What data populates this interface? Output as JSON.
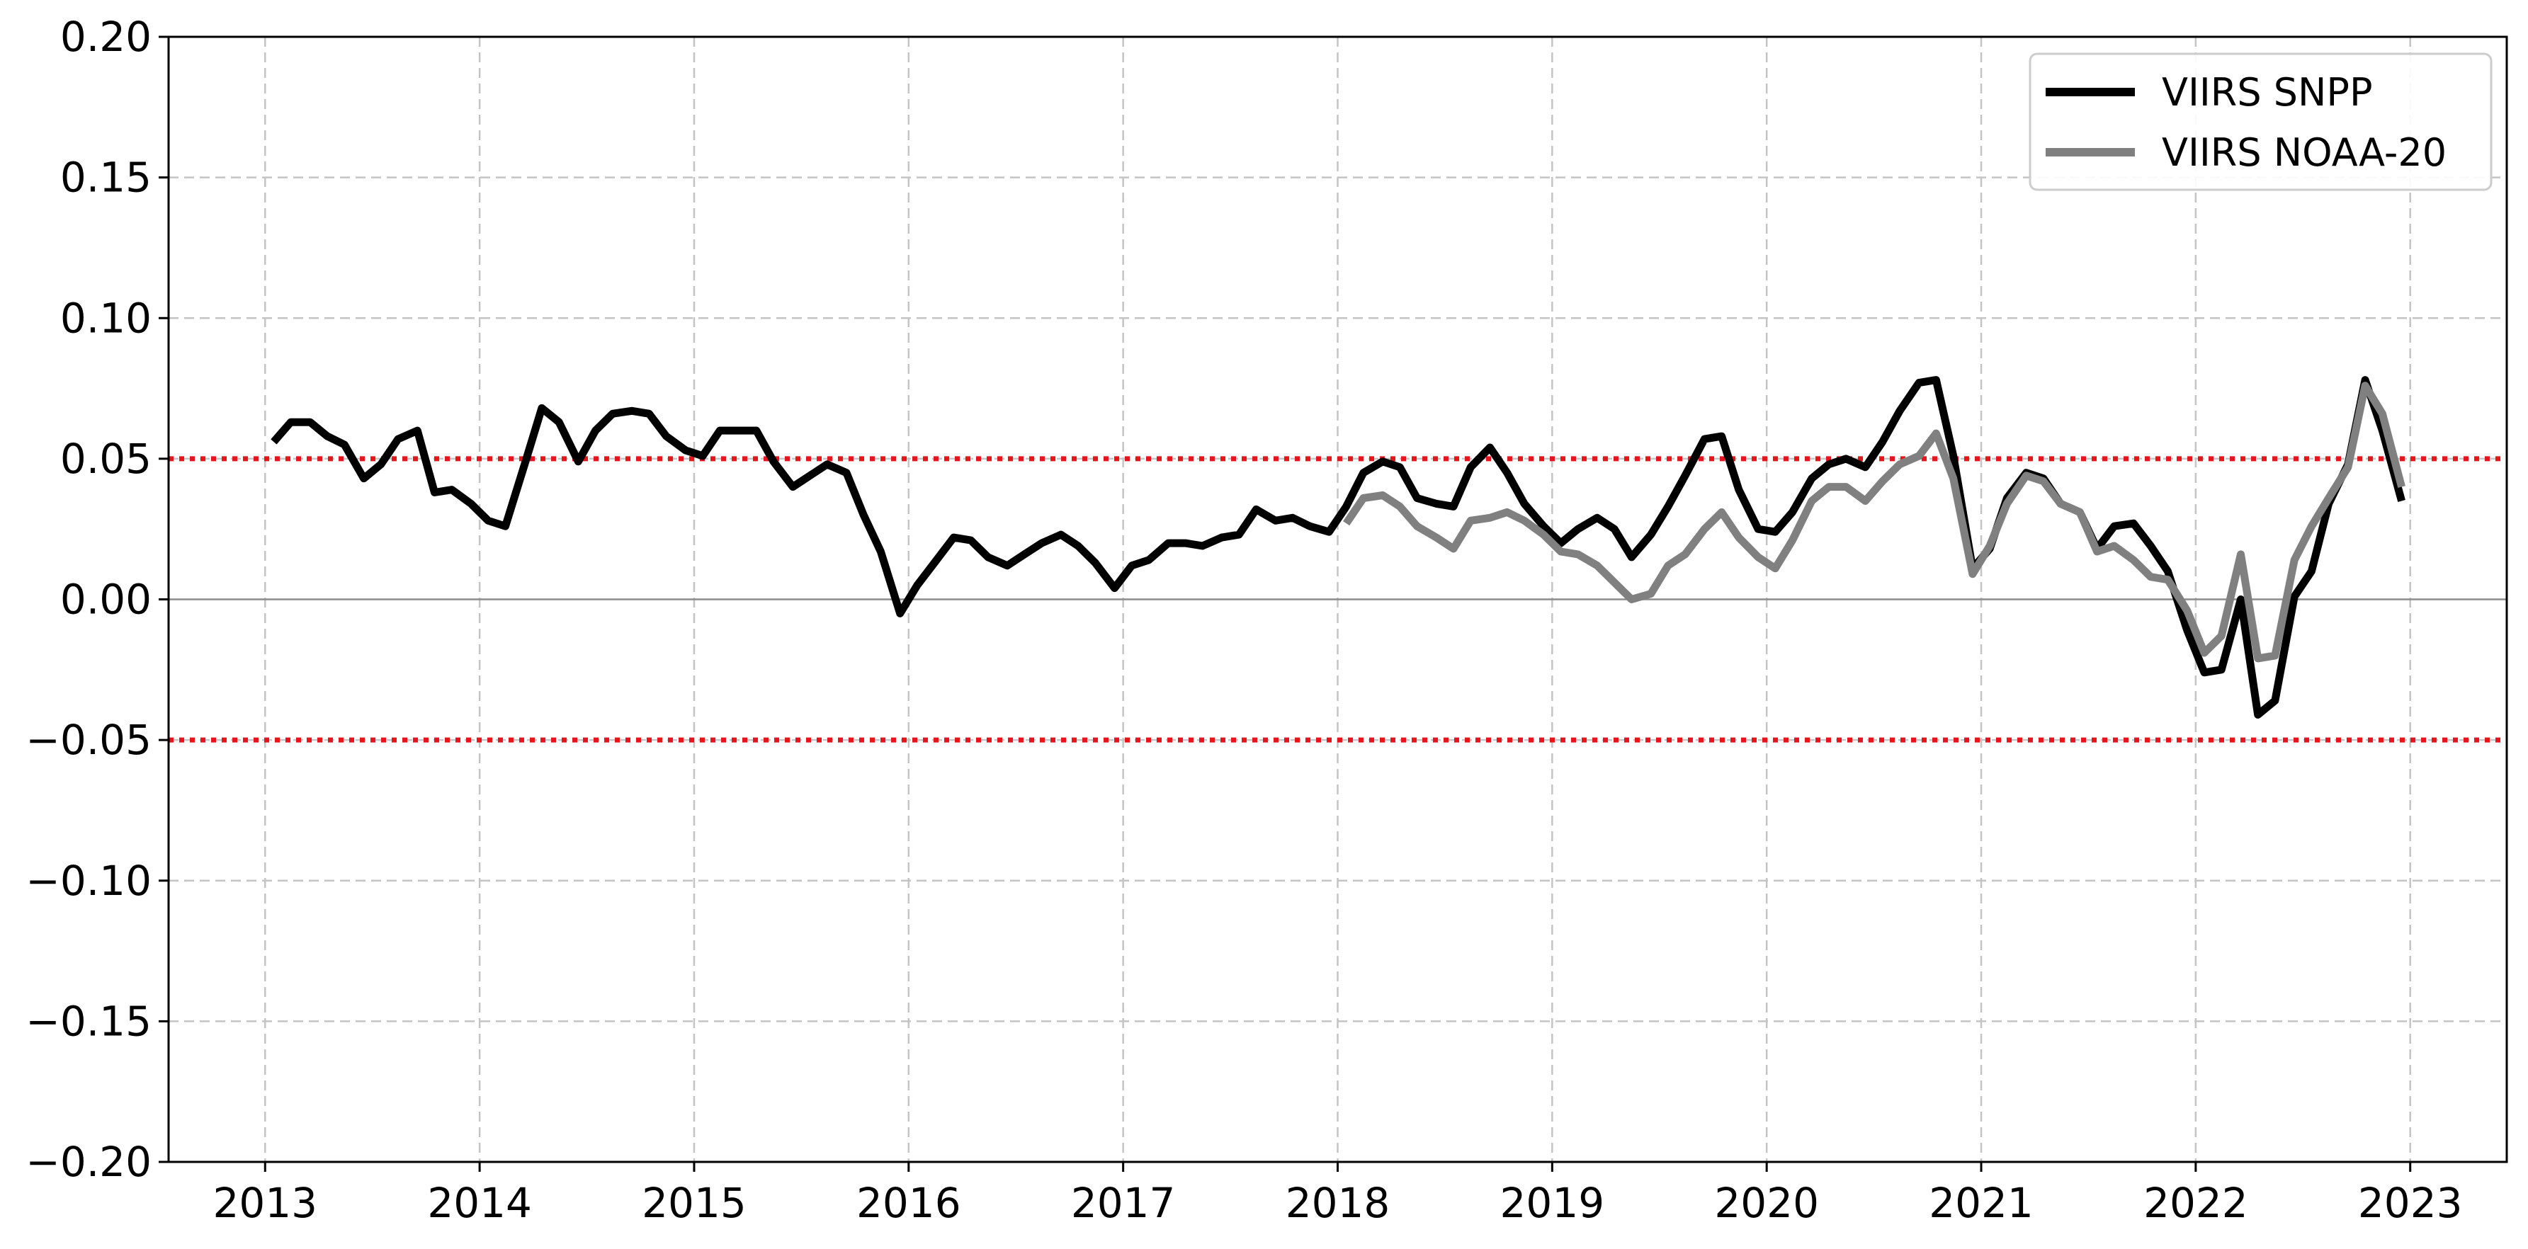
{
  "chart_data": {
    "type": "line",
    "title": "",
    "xlabel": "",
    "ylabel": "",
    "xlim": [
      2012.55,
      2023.45
    ],
    "ylim": [
      -0.2,
      0.2
    ],
    "x_ticks": [
      2013,
      2014,
      2015,
      2016,
      2017,
      2018,
      2019,
      2020,
      2021,
      2022,
      2023
    ],
    "x_tick_labels": [
      "2013",
      "2014",
      "2015",
      "2016",
      "2017",
      "2018",
      "2019",
      "2020",
      "2021",
      "2022",
      "2023"
    ],
    "y_ticks": [
      -0.2,
      -0.15,
      -0.1,
      -0.05,
      0.0,
      0.05,
      0.1,
      0.15,
      0.2
    ],
    "y_tick_labels": [
      "−0.20",
      "−0.15",
      "−0.10",
      "−0.05",
      "0.00",
      "0.05",
      "0.10",
      "0.15",
      "0.20"
    ],
    "grid": true,
    "reference_lines": [
      {
        "y": 0.05,
        "color": "#e8141b",
        "style": "dotted"
      },
      {
        "y": -0.05,
        "color": "#e8141b",
        "style": "dotted"
      },
      {
        "y": 0.0,
        "color": "#8c8c8c",
        "style": "solid"
      }
    ],
    "legend": {
      "position": "top-right"
    },
    "series": [
      {
        "name": "VIIRS SNPP",
        "color": "#000000",
        "x": [
          2013.04,
          2013.12,
          2013.21,
          2013.29,
          2013.37,
          2013.46,
          2013.54,
          2013.62,
          2013.71,
          2013.79,
          2013.87,
          2013.96,
          2014.04,
          2014.12,
          2014.21,
          2014.29,
          2014.37,
          2014.46,
          2014.54,
          2014.62,
          2014.71,
          2014.79,
          2014.87,
          2014.96,
          2015.04,
          2015.12,
          2015.21,
          2015.29,
          2015.37,
          2015.46,
          2015.54,
          2015.62,
          2015.71,
          2015.79,
          2015.87,
          2015.96,
          2016.04,
          2016.12,
          2016.21,
          2016.29,
          2016.37,
          2016.46,
          2016.54,
          2016.62,
          2016.71,
          2016.79,
          2016.87,
          2016.96,
          2017.04,
          2017.12,
          2017.21,
          2017.29,
          2017.37,
          2017.46,
          2017.54,
          2017.62,
          2017.71,
          2017.79,
          2017.87,
          2017.96,
          2018.04,
          2018.12,
          2018.21,
          2018.29,
          2018.37,
          2018.46,
          2018.54,
          2018.62,
          2018.71,
          2018.79,
          2018.87,
          2018.96,
          2019.04,
          2019.12,
          2019.21,
          2019.29,
          2019.37,
          2019.46,
          2019.54,
          2019.62,
          2019.71,
          2019.79,
          2019.87,
          2019.96,
          2020.04,
          2020.12,
          2020.21,
          2020.29,
          2020.37,
          2020.46,
          2020.54,
          2020.62,
          2020.71,
          2020.79,
          2020.87,
          2020.96,
          2021.04,
          2021.12,
          2021.21,
          2021.29,
          2021.37,
          2021.46,
          2021.54,
          2021.62,
          2021.71,
          2021.79,
          2021.87,
          2021.96,
          2022.04,
          2022.12,
          2022.21,
          2022.29,
          2022.37,
          2022.46,
          2022.54,
          2022.62,
          2022.71,
          2022.79,
          2022.87,
          2022.96
        ],
        "values": [
          0.056,
          0.063,
          0.063,
          0.058,
          0.055,
          0.043,
          0.048,
          0.057,
          0.06,
          0.038,
          0.039,
          0.034,
          0.028,
          0.026,
          0.048,
          0.068,
          0.063,
          0.049,
          0.06,
          0.066,
          0.067,
          0.066,
          0.058,
          0.053,
          0.051,
          0.06,
          0.06,
          0.06,
          0.049,
          0.04,
          0.044,
          0.048,
          0.045,
          0.03,
          0.017,
          -0.005,
          0.005,
          0.013,
          0.022,
          0.021,
          0.015,
          0.012,
          0.016,
          0.02,
          0.023,
          0.019,
          0.013,
          0.004,
          0.012,
          0.014,
          0.02,
          0.02,
          0.019,
          0.022,
          0.023,
          0.032,
          0.028,
          0.029,
          0.026,
          0.024,
          0.033,
          0.045,
          0.049,
          0.047,
          0.036,
          0.034,
          0.033,
          0.047,
          0.054,
          0.045,
          0.034,
          0.026,
          0.02,
          0.025,
          0.029,
          0.025,
          0.015,
          0.023,
          0.033,
          0.044,
          0.057,
          0.058,
          0.039,
          0.025,
          0.024,
          0.031,
          0.043,
          0.048,
          0.05,
          0.047,
          0.056,
          0.067,
          0.077,
          0.078,
          0.051,
          0.011,
          0.018,
          0.036,
          0.045,
          0.043,
          0.034,
          0.031,
          0.018,
          0.026,
          0.027,
          0.019,
          0.01,
          -0.011,
          -0.026,
          -0.025,
          0.0,
          -0.041,
          -0.036,
          0.001,
          0.01,
          0.034,
          0.048,
          0.078,
          0.06,
          0.035
        ]
      },
      {
        "name": "VIIRS NOAA-20",
        "color": "#808080",
        "x": [
          2018.04,
          2018.12,
          2018.21,
          2018.29,
          2018.37,
          2018.46,
          2018.54,
          2018.62,
          2018.71,
          2018.79,
          2018.87,
          2018.96,
          2019.04,
          2019.12,
          2019.21,
          2019.29,
          2019.37,
          2019.46,
          2019.54,
          2019.62,
          2019.71,
          2019.79,
          2019.87,
          2019.96,
          2020.04,
          2020.12,
          2020.21,
          2020.29,
          2020.37,
          2020.46,
          2020.54,
          2020.62,
          2020.71,
          2020.79,
          2020.87,
          2020.96,
          2021.04,
          2021.12,
          2021.21,
          2021.29,
          2021.37,
          2021.46,
          2021.54,
          2021.62,
          2021.71,
          2021.79,
          2021.87,
          2021.96,
          2022.04,
          2022.12,
          2022.21,
          2022.29,
          2022.37,
          2022.46,
          2022.54,
          2022.62,
          2022.71,
          2022.79,
          2022.87,
          2022.96
        ],
        "values": [
          0.027,
          0.036,
          0.037,
          0.033,
          0.026,
          0.022,
          0.018,
          0.028,
          0.029,
          0.031,
          0.028,
          0.023,
          0.017,
          0.016,
          0.012,
          0.006,
          0.0,
          0.002,
          0.012,
          0.016,
          0.025,
          0.031,
          0.022,
          0.015,
          0.011,
          0.021,
          0.035,
          0.04,
          0.04,
          0.035,
          0.042,
          0.048,
          0.051,
          0.059,
          0.043,
          0.009,
          0.019,
          0.034,
          0.044,
          0.042,
          0.034,
          0.031,
          0.017,
          0.019,
          0.014,
          0.008,
          0.007,
          -0.004,
          -0.019,
          -0.013,
          0.016,
          -0.021,
          -0.02,
          0.014,
          0.026,
          0.036,
          0.047,
          0.076,
          0.066,
          0.04
        ]
      }
    ]
  }
}
